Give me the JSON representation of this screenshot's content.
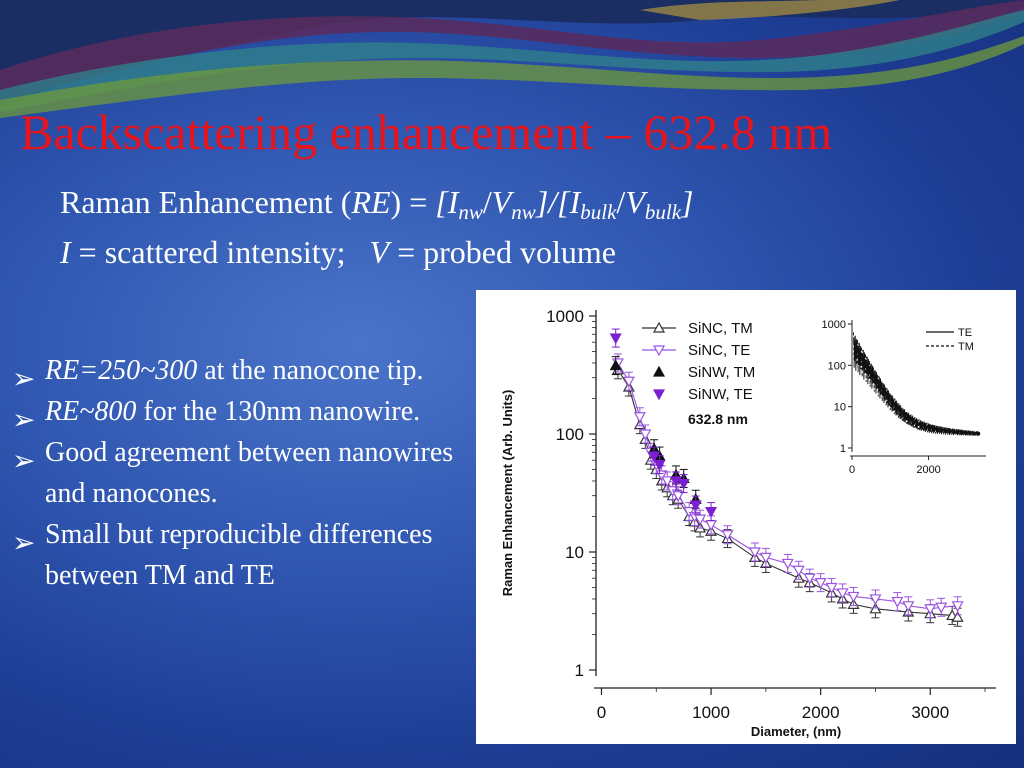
{
  "slide": {
    "title": "Backscattering enhancement – 632.8 nm",
    "eq1": {
      "lead": "Raman Enhancement (",
      "re": "RE",
      "mid": ") = ",
      "br1": "[",
      "I": "I",
      "nw": "nw",
      "slash": "/",
      "V": "V",
      "nw2": "nw",
      "mid2": "]/[",
      "I2": "I",
      "bulk": "bulk",
      "slash2": "/",
      "V2": "V",
      "bulk2": "bulk",
      "br2": "]"
    },
    "eq2": {
      "I": "I",
      "idef": " = scattered intensity;",
      "V": "V",
      "vdef": " = probed volume"
    },
    "bullets": [
      {
        "italic": "RE=250~300",
        "text": " at the nanocone tip."
      },
      {
        "italic": "RE~800",
        "text": " for the 130nm nanowire."
      },
      {
        "italic": "",
        "text": "Good agreement between nanowires and nanocones."
      },
      {
        "italic": "",
        "text": "Small but reproducible differences between TM and TE"
      }
    ],
    "arrow_glyph": "➢"
  },
  "chart_data": [
    {
      "type": "scatter",
      "title": "",
      "xlabel": "Diameter, (nm)",
      "ylabel": "Raman Enhancement (Arb. Units)",
      "xlim": [
        -50,
        3600
      ],
      "ylim": [
        1,
        1000
      ],
      "yscale": "log",
      "xticks": [
        "0",
        "1000",
        "2000",
        "3000"
      ],
      "yticks": [
        "1000",
        "100",
        "10",
        "1"
      ],
      "annotation": "632.8 nm",
      "legend_position": "top-center",
      "series": [
        {
          "name": "SiNC, TM",
          "marker": "open-triangle-up",
          "color": "#333333",
          "line": true,
          "x": [
            150,
            250,
            350,
            400,
            450,
            500,
            550,
            600,
            650,
            700,
            800,
            850,
            900,
            1000,
            1150,
            1400,
            1500,
            1800,
            1900,
            2100,
            2200,
            2300,
            2500,
            2800,
            3000,
            3200,
            3250
          ],
          "y": [
            350,
            250,
            120,
            90,
            60,
            50,
            40,
            35,
            30,
            28,
            20,
            18,
            16,
            15,
            13,
            9,
            8,
            6,
            5.5,
            4.5,
            4,
            3.6,
            3.3,
            3.1,
            3,
            2.9,
            2.8
          ]
        },
        {
          "name": "SiNC, TE",
          "marker": "open-triangle-down",
          "color": "#9a55e0",
          "line": true,
          "x": [
            150,
            250,
            350,
            400,
            450,
            500,
            550,
            600,
            650,
            700,
            800,
            850,
            900,
            1000,
            1150,
            1400,
            1500,
            1700,
            1800,
            1900,
            2000,
            2100,
            2200,
            2300,
            2500,
            2700,
            2800,
            3000,
            3100,
            3250
          ],
          "y": [
            400,
            280,
            140,
            100,
            70,
            55,
            45,
            40,
            33,
            30,
            22,
            20,
            19,
            17,
            14,
            10,
            9,
            8,
            7,
            6,
            5.5,
            5,
            4.5,
            4.2,
            4,
            3.8,
            3.5,
            3.3,
            3.4,
            3.5
          ]
        },
        {
          "name": "SiNW, TM",
          "marker": "filled-triangle-up",
          "color": "#111111",
          "line": false,
          "x": [
            130,
            480,
            530,
            680,
            750,
            860
          ],
          "y": [
            380,
            75,
            65,
            45,
            42,
            28
          ]
        },
        {
          "name": "SiNW, TE",
          "marker": "filled-triangle-down",
          "color": "#7b1fd0",
          "line": false,
          "x": [
            130,
            480,
            530,
            680,
            750,
            860,
            1000
          ],
          "y": [
            650,
            65,
            55,
            40,
            38,
            25,
            22
          ]
        }
      ]
    },
    {
      "type": "line",
      "xlim": [
        0,
        3500
      ],
      "ylim": [
        1,
        1000
      ],
      "yscale": "log",
      "xticks": [
        "0",
        "2000"
      ],
      "yticks": [
        "1000",
        "100",
        "10",
        "1"
      ],
      "legend_position": "top-right",
      "series": [
        {
          "name": "TE",
          "style": "solid"
        },
        {
          "name": "TM",
          "style": "dashed"
        }
      ]
    }
  ]
}
